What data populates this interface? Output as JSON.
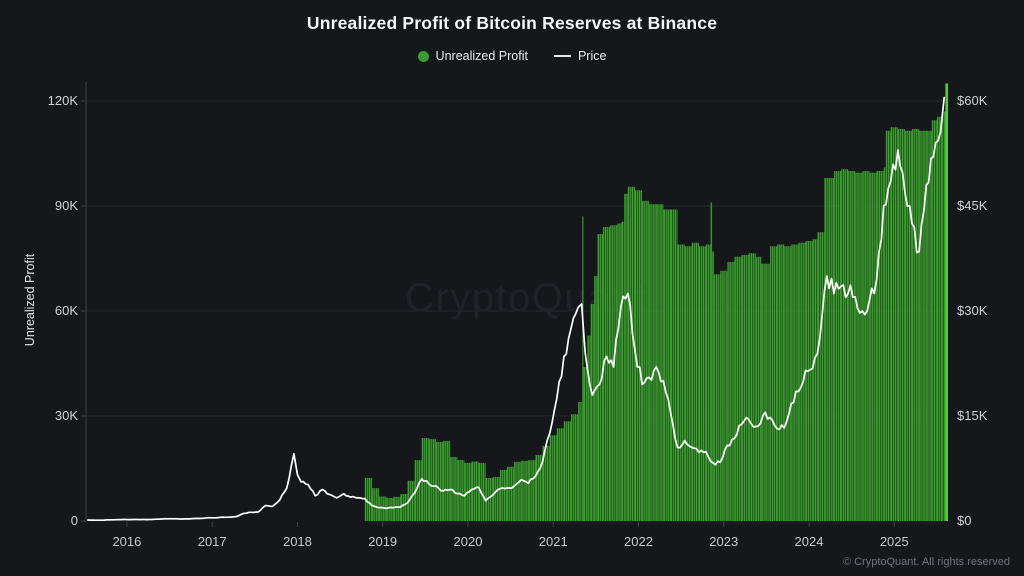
{
  "title": "Unrealized Profit of Bitcoin Reserves at Binance",
  "legend": [
    {
      "label": "Unrealized Profit",
      "marker": "dot",
      "color": "#3a9a2e"
    },
    {
      "label": "Price",
      "marker": "line",
      "color": "#e6e8ea"
    }
  ],
  "watermark": "CryptoQuant",
  "attribution": "© CryptoQuant. All rights reserved",
  "colors": {
    "background": "#15171b",
    "grid": "#24272c",
    "axis": "#3d4147",
    "green": "#3ba02e",
    "green_dark": "#36922a",
    "green_bright": "#55cc3f",
    "price_line": "#ffffff",
    "watermark": "#1f2329"
  },
  "chart_data": {
    "type": "area+line",
    "title": "Unrealized Profit of Bitcoin Reserves at Binance",
    "grid": "horizontal-only",
    "legend_position": "top-center",
    "left_axis": {
      "label": "Unrealized Profit",
      "range": [
        0,
        126
      ],
      "ticks": [
        {
          "v": 0,
          "label": "0"
        },
        {
          "v": 30,
          "label": "30K"
        },
        {
          "v": 60,
          "label": "60K"
        },
        {
          "v": 90,
          "label": "90K"
        },
        {
          "v": 120,
          "label": "120K"
        }
      ]
    },
    "right_axis": {
      "label": "",
      "range": [
        0,
        63
      ],
      "ticks": [
        {
          "v": 0,
          "label": "$0"
        },
        {
          "v": 15,
          "label": "$15K"
        },
        {
          "v": 30,
          "label": "$30K"
        },
        {
          "v": 45,
          "label": "$45K"
        },
        {
          "v": 60,
          "label": "$60K"
        }
      ]
    },
    "x_axis": {
      "range": [
        2015.52,
        2025.63
      ],
      "ticks": [
        2016,
        2017,
        2018,
        2019,
        2020,
        2021,
        2022,
        2023,
        2024,
        2025
      ]
    },
    "highlight_bar": {
      "t": 2025.61,
      "value": 125
    },
    "series": [
      {
        "name": "Unrealized Profit",
        "type": "area-bars",
        "axis": "left",
        "interpolation": "step-after",
        "points": [
          [
            2018.79,
            12.3
          ],
          [
            2018.875,
            9.4
          ],
          [
            2018.958,
            7.0
          ],
          [
            2019.042,
            6.6
          ],
          [
            2019.125,
            6.9
          ],
          [
            2019.208,
            7.7
          ],
          [
            2019.292,
            11.5
          ],
          [
            2019.375,
            17.4
          ],
          [
            2019.458,
            23.7
          ],
          [
            2019.542,
            23.4
          ],
          [
            2019.625,
            22.6
          ],
          [
            2019.708,
            22.9
          ],
          [
            2019.792,
            18.3
          ],
          [
            2019.875,
            17.4
          ],
          [
            2019.958,
            16.6
          ],
          [
            2020.042,
            17.0
          ],
          [
            2020.125,
            16.6
          ],
          [
            2020.208,
            12.3
          ],
          [
            2020.292,
            12.6
          ],
          [
            2020.375,
            14.6
          ],
          [
            2020.458,
            15.5
          ],
          [
            2020.542,
            16.9
          ],
          [
            2020.625,
            17.2
          ],
          [
            2020.708,
            17.4
          ],
          [
            2020.792,
            18.9
          ],
          [
            2020.875,
            21.5
          ],
          [
            2020.958,
            24.5
          ],
          [
            2021.042,
            26.5
          ],
          [
            2021.125,
            28.5
          ],
          [
            2021.208,
            30.5
          ],
          [
            2021.292,
            34.0
          ],
          [
            2021.34,
            87.0
          ],
          [
            2021.355,
            44.0
          ],
          [
            2021.4,
            53.0
          ],
          [
            2021.44,
            62.0
          ],
          [
            2021.48,
            70.0
          ],
          [
            2021.52,
            82.0
          ],
          [
            2021.583,
            84.0
          ],
          [
            2021.667,
            84.5
          ],
          [
            2021.75,
            85.0
          ],
          [
            2021.8,
            85.5
          ],
          [
            2021.833,
            93.5
          ],
          [
            2021.875,
            95.5
          ],
          [
            2021.958,
            94.5
          ],
          [
            2022.042,
            91.5
          ],
          [
            2022.125,
            90.5
          ],
          [
            2022.208,
            90.5
          ],
          [
            2022.292,
            89.0
          ],
          [
            2022.375,
            89.0
          ],
          [
            2022.458,
            79.0
          ],
          [
            2022.542,
            78.5
          ],
          [
            2022.625,
            79.5
          ],
          [
            2022.708,
            78.5
          ],
          [
            2022.792,
            79.0
          ],
          [
            2022.845,
            91.0
          ],
          [
            2022.865,
            77.0
          ],
          [
            2022.885,
            70.5
          ],
          [
            2022.958,
            71.5
          ],
          [
            2023.042,
            74.0
          ],
          [
            2023.125,
            75.5
          ],
          [
            2023.208,
            76.0
          ],
          [
            2023.292,
            76.5
          ],
          [
            2023.375,
            75.5
          ],
          [
            2023.44,
            73.5
          ],
          [
            2023.542,
            78.5
          ],
          [
            2023.625,
            79.0
          ],
          [
            2023.708,
            78.5
          ],
          [
            2023.792,
            79.0
          ],
          [
            2023.875,
            79.5
          ],
          [
            2023.958,
            80.0
          ],
          [
            2024.042,
            80.5
          ],
          [
            2024.1,
            82.5
          ],
          [
            2024.18,
            98.0
          ],
          [
            2024.292,
            100.0
          ],
          [
            2024.375,
            100.5
          ],
          [
            2024.458,
            100.0
          ],
          [
            2024.542,
            99.5
          ],
          [
            2024.625,
            100.0
          ],
          [
            2024.708,
            99.5
          ],
          [
            2024.792,
            100.0
          ],
          [
            2024.875,
            101.0
          ],
          [
            2024.9,
            111.5
          ],
          [
            2024.958,
            112.5
          ],
          [
            2025.042,
            112.0
          ],
          [
            2025.125,
            111.5
          ],
          [
            2025.208,
            112.0
          ],
          [
            2025.292,
            111.5
          ],
          [
            2025.375,
            111.5
          ],
          [
            2025.44,
            114.5
          ],
          [
            2025.5,
            115.5
          ],
          [
            2025.56,
            117.0
          ],
          [
            2025.605,
            118.0
          ]
        ]
      },
      {
        "name": "Price",
        "type": "line",
        "axis": "right",
        "interpolation": "linear",
        "points": [
          [
            2015.542,
            0.14
          ],
          [
            2015.625,
            0.11
          ],
          [
            2015.708,
            0.12
          ],
          [
            2015.792,
            0.16
          ],
          [
            2015.875,
            0.19
          ],
          [
            2015.958,
            0.21
          ],
          [
            2016.042,
            0.2
          ],
          [
            2016.125,
            0.21
          ],
          [
            2016.208,
            0.21
          ],
          [
            2016.292,
            0.22
          ],
          [
            2016.375,
            0.26
          ],
          [
            2016.458,
            0.33
          ],
          [
            2016.542,
            0.32
          ],
          [
            2016.625,
            0.29
          ],
          [
            2016.708,
            0.3
          ],
          [
            2016.792,
            0.35
          ],
          [
            2016.875,
            0.37
          ],
          [
            2016.958,
            0.47
          ],
          [
            2017.042,
            0.46
          ],
          [
            2017.125,
            0.55
          ],
          [
            2017.208,
            0.54
          ],
          [
            2017.292,
            0.66
          ],
          [
            2017.375,
            1.1
          ],
          [
            2017.458,
            1.25
          ],
          [
            2017.542,
            1.3
          ],
          [
            2017.625,
            2.2
          ],
          [
            2017.708,
            2.1
          ],
          [
            2017.792,
            3.0
          ],
          [
            2017.875,
            4.7
          ],
          [
            2017.958,
            9.6
          ],
          [
            2018.0,
            6.6
          ],
          [
            2018.042,
            5.6
          ],
          [
            2018.125,
            5.2
          ],
          [
            2018.208,
            3.6
          ],
          [
            2018.292,
            4.5
          ],
          [
            2018.375,
            3.8
          ],
          [
            2018.458,
            3.3
          ],
          [
            2018.542,
            3.9
          ],
          [
            2018.625,
            3.4
          ],
          [
            2018.708,
            3.3
          ],
          [
            2018.792,
            3.2
          ],
          [
            2018.875,
            2.2
          ],
          [
            2018.958,
            1.9
          ],
          [
            2019.042,
            1.8
          ],
          [
            2019.125,
            1.9
          ],
          [
            2019.208,
            2.0
          ],
          [
            2019.292,
            2.6
          ],
          [
            2019.375,
            4.0
          ],
          [
            2019.458,
            6.0
          ],
          [
            2019.542,
            5.3
          ],
          [
            2019.625,
            5.0
          ],
          [
            2019.708,
            4.3
          ],
          [
            2019.792,
            4.5
          ],
          [
            2019.875,
            3.9
          ],
          [
            2019.958,
            3.6
          ],
          [
            2020.042,
            4.5
          ],
          [
            2020.125,
            4.8
          ],
          [
            2020.208,
            2.9
          ],
          [
            2020.292,
            3.7
          ],
          [
            2020.375,
            4.6
          ],
          [
            2020.458,
            4.7
          ],
          [
            2020.542,
            5.0
          ],
          [
            2020.625,
            5.9
          ],
          [
            2020.708,
            5.4
          ],
          [
            2020.792,
            6.4
          ],
          [
            2020.875,
            8.5
          ],
          [
            2020.958,
            12.5
          ],
          [
            2021.042,
            17.5
          ],
          [
            2021.125,
            23.5
          ],
          [
            2021.208,
            27.5
          ],
          [
            2021.292,
            30.5
          ],
          [
            2021.333,
            31.0
          ],
          [
            2021.375,
            24.0
          ],
          [
            2021.458,
            18.0
          ],
          [
            2021.542,
            19.5
          ],
          [
            2021.625,
            23.5
          ],
          [
            2021.708,
            22.0
          ],
          [
            2021.792,
            30.5
          ],
          [
            2021.875,
            32.5
          ],
          [
            2021.958,
            24.5
          ],
          [
            2022.042,
            19.5
          ],
          [
            2022.125,
            20.5
          ],
          [
            2022.208,
            22.0
          ],
          [
            2022.292,
            20.0
          ],
          [
            2022.375,
            15.5
          ],
          [
            2022.458,
            10.5
          ],
          [
            2022.542,
            11.5
          ],
          [
            2022.625,
            10.5
          ],
          [
            2022.708,
            9.8
          ],
          [
            2022.792,
            9.9
          ],
          [
            2022.875,
            8.3
          ],
          [
            2022.958,
            8.4
          ],
          [
            2023.042,
            10.8
          ],
          [
            2023.125,
            11.8
          ],
          [
            2023.208,
            13.8
          ],
          [
            2023.292,
            14.5
          ],
          [
            2023.375,
            13.5
          ],
          [
            2023.458,
            15.0
          ],
          [
            2023.542,
            14.8
          ],
          [
            2023.625,
            13.2
          ],
          [
            2023.708,
            13.3
          ],
          [
            2023.792,
            16.8
          ],
          [
            2023.875,
            18.5
          ],
          [
            2023.958,
            21.5
          ],
          [
            2024.042,
            21.8
          ],
          [
            2024.125,
            26.0
          ],
          [
            2024.208,
            35.0
          ],
          [
            2024.292,
            32.5
          ],
          [
            2024.375,
            33.5
          ],
          [
            2024.458,
            32.5
          ],
          [
            2024.542,
            32.0
          ],
          [
            2024.625,
            30.0
          ],
          [
            2024.708,
            31.5
          ],
          [
            2024.792,
            34.5
          ],
          [
            2024.875,
            45.0
          ],
          [
            2024.958,
            48.5
          ],
          [
            2025.042,
            53.0
          ],
          [
            2025.125,
            47.0
          ],
          [
            2025.208,
            42.5
          ],
          [
            2025.292,
            38.5
          ],
          [
            2025.375,
            48.0
          ],
          [
            2025.458,
            52.0
          ],
          [
            2025.542,
            55.5
          ],
          [
            2025.585,
            60.5
          ]
        ]
      }
    ]
  }
}
